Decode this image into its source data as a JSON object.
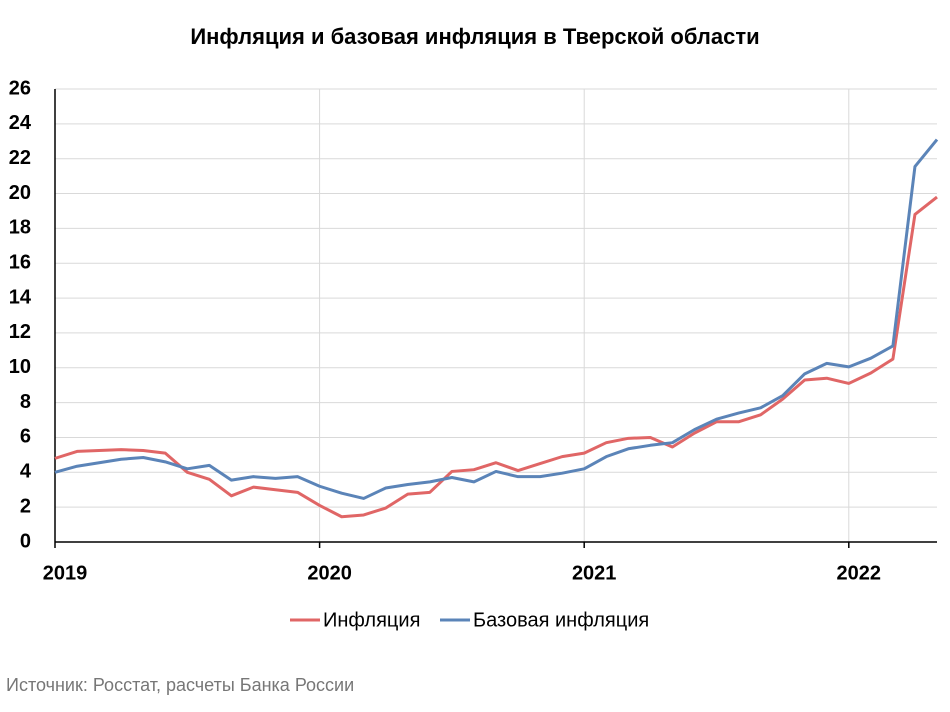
{
  "chart_data": {
    "type": "line",
    "title": "Инфляция и базовая инфляция в Тверской области",
    "categories": [
      "2019",
      null,
      null,
      null,
      null,
      null,
      null,
      null,
      null,
      null,
      null,
      null,
      "2020",
      null,
      null,
      null,
      null,
      null,
      null,
      null,
      null,
      null,
      null,
      null,
      "2021",
      null,
      null,
      null,
      null,
      null,
      null,
      null,
      null,
      null,
      null,
      null,
      "2022",
      null,
      null,
      null,
      null
    ],
    "series": [
      {
        "name": "Инфляция",
        "color": "#e06666",
        "values": [
          4.8,
          5.2,
          5.25,
          5.3,
          5.25,
          5.1,
          4.0,
          3.6,
          2.65,
          3.15,
          3.0,
          2.85,
          2.1,
          1.45,
          1.55,
          1.95,
          2.75,
          2.85,
          4.05,
          4.15,
          4.55,
          4.1,
          4.5,
          4.9,
          5.1,
          5.7,
          5.95,
          6.0,
          5.45,
          6.25,
          6.9,
          6.9,
          7.3,
          8.2,
          9.3,
          9.4,
          9.1,
          9.7,
          10.5,
          18.8,
          19.8
        ]
      },
      {
        "name": "Базовая инфляция",
        "color": "#5b84b8",
        "values": [
          4.0,
          4.35,
          4.55,
          4.75,
          4.85,
          4.6,
          4.2,
          4.4,
          3.55,
          3.75,
          3.65,
          3.75,
          3.2,
          2.8,
          2.5,
          3.1,
          3.3,
          3.45,
          3.7,
          3.45,
          4.05,
          3.75,
          3.75,
          3.95,
          4.2,
          4.9,
          5.35,
          5.55,
          5.7,
          6.45,
          7.05,
          7.4,
          7.7,
          8.4,
          9.65,
          10.25,
          10.05,
          10.55,
          11.25,
          21.55,
          23.1
        ]
      }
    ],
    "ylim": [
      0,
      26
    ],
    "yticks": [
      0,
      2,
      4,
      6,
      8,
      10,
      12,
      14,
      16,
      18,
      20,
      22,
      24,
      26
    ],
    "grid": true,
    "legend": "bottom",
    "source": "Источник: Росстат, расчеты Банка России"
  }
}
